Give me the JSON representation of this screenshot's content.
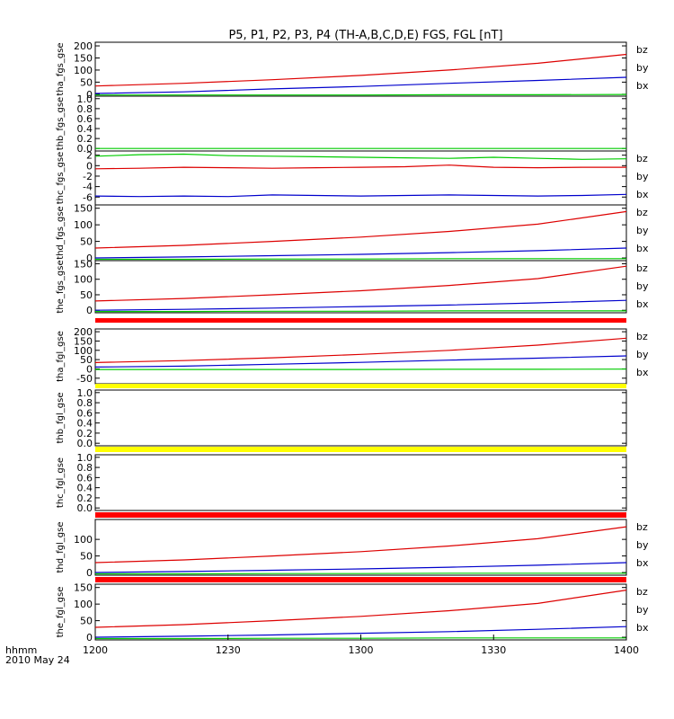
{
  "title": "P5, P1, P2, P3, P4 (TH-A,B,C,D,E) FGS, FGL [nT]",
  "time_axis": {
    "label_top": "hhmm",
    "label_bottom": "2010 May 24",
    "ticks": [
      "1200",
      "1230",
      "1300",
      "1330",
      "1400"
    ]
  },
  "colors": {
    "bx": "#0000cc",
    "by": "#00cc00",
    "bz": "#dd0000",
    "bar_red": "#ff0000",
    "bar_yellow": "#ffff00"
  },
  "chart_data": [
    {
      "type": "line",
      "name": "tha_fgs_gse",
      "ylabel": "tha_fgs_gse",
      "ylim": [
        -8,
        215
      ],
      "yticks": [
        "0",
        "50",
        "100",
        "150",
        "200"
      ],
      "ytick_values": [
        0,
        50,
        100,
        150,
        200
      ],
      "legend": [
        "bz",
        "by",
        "bx"
      ],
      "x": [
        0,
        20,
        40,
        60,
        80,
        100,
        120
      ],
      "series": [
        {
          "name": "bz",
          "color": "bz",
          "values": [
            34,
            45,
            60,
            78,
            100,
            128,
            165
          ]
        },
        {
          "name": "by",
          "color": "by",
          "values": [
            -3,
            -3,
            -3,
            -3,
            -2,
            -2,
            -1
          ]
        },
        {
          "name": "bx",
          "color": "bx",
          "values": [
            3,
            10,
            22,
            32,
            45,
            57,
            70
          ]
        }
      ]
    },
    {
      "type": "line",
      "name": "thb_fgs_gse",
      "ylabel": "thb_fgs_gse",
      "ylim": [
        -0.05,
        1.05
      ],
      "yticks": [
        "0.0",
        "0.2",
        "0.4",
        "0.6",
        "0.8",
        "1.0"
      ],
      "ytick_values": [
        0,
        0.2,
        0.4,
        0.6,
        0.8,
        1.0
      ],
      "legend": [],
      "x": [
        0,
        120
      ],
      "series": [
        {
          "name": "",
          "color": "by",
          "values": [
            0,
            0
          ]
        }
      ]
    },
    {
      "type": "line",
      "name": "thc_fgs_gse",
      "ylabel": "thc_fgs_gse",
      "ylim": [
        -7.5,
        2.8
      ],
      "yticks": [
        "-6",
        "-4",
        "-2",
        "0",
        "2"
      ],
      "ytick_values": [
        -6,
        -4,
        -2,
        0,
        2
      ],
      "legend": [
        "bz",
        "by",
        "bx"
      ],
      "x": [
        0,
        10,
        20,
        30,
        40,
        50,
        60,
        70,
        80,
        90,
        100,
        110,
        120
      ],
      "series": [
        {
          "name": "bz",
          "color": "bz",
          "values": [
            -0.6,
            -0.5,
            -0.3,
            -0.4,
            -0.5,
            -0.4,
            -0.3,
            -0.2,
            0.1,
            -0.3,
            -0.4,
            -0.3,
            -0.3
          ]
        },
        {
          "name": "by",
          "color": "by",
          "values": [
            1.8,
            2.1,
            2.2,
            1.9,
            1.8,
            1.7,
            1.6,
            1.5,
            1.4,
            1.6,
            1.4,
            1.2,
            1.3
          ]
        },
        {
          "name": "bx",
          "color": "bx",
          "values": [
            -5.8,
            -5.9,
            -5.8,
            -5.9,
            -5.6,
            -5.7,
            -5.8,
            -5.7,
            -5.6,
            -5.7,
            -5.8,
            -5.7,
            -5.5
          ]
        }
      ]
    },
    {
      "type": "line",
      "name": "thd_fgs_gse",
      "ylabel": "thd_fgs_gse",
      "ylim": [
        -8,
        160
      ],
      "yticks": [
        "0",
        "50",
        "100",
        "150"
      ],
      "ytick_values": [
        0,
        50,
        100,
        150
      ],
      "legend": [
        "bz",
        "by",
        "bx"
      ],
      "x": [
        0,
        20,
        40,
        60,
        80,
        100,
        120
      ],
      "series": [
        {
          "name": "bz",
          "color": "bz",
          "values": [
            30,
            38,
            50,
            63,
            80,
            102,
            140
          ]
        },
        {
          "name": "by",
          "color": "by",
          "values": [
            -4,
            -4,
            -3,
            -3,
            -2,
            -2,
            -2
          ]
        },
        {
          "name": "bx",
          "color": "bx",
          "values": [
            0,
            3,
            7,
            11,
            16,
            22,
            30
          ]
        }
      ]
    },
    {
      "type": "line",
      "name": "the_fgs_gse",
      "ylabel": "the_fgs_gse",
      "ylim": [
        -8,
        160
      ],
      "yticks": [
        "0",
        "50",
        "100",
        "150"
      ],
      "ytick_values": [
        0,
        50,
        100,
        150
      ],
      "legend": [
        "bz",
        "by",
        "bx"
      ],
      "x": [
        0,
        20,
        40,
        60,
        80,
        100,
        120
      ],
      "series": [
        {
          "name": "bz",
          "color": "bz",
          "values": [
            30,
            38,
            50,
            63,
            80,
            102,
            142
          ]
        },
        {
          "name": "by",
          "color": "by",
          "values": [
            -4,
            -4,
            -3,
            -3,
            -2,
            -2,
            -2
          ]
        },
        {
          "name": "bx",
          "color": "bx",
          "values": [
            0,
            3,
            7,
            12,
            17,
            24,
            32
          ]
        }
      ]
    },
    {
      "type": "line",
      "name": "tha_fgl_gse",
      "ylabel": "tha_fgl_gse",
      "ylim": [
        -80,
        215
      ],
      "yticks": [
        "-50",
        "0",
        "50",
        "100",
        "150",
        "200"
      ],
      "ytick_values": [
        -50,
        0,
        50,
        100,
        150,
        200
      ],
      "legend": [
        "bz",
        "by",
        "bx"
      ],
      "x": [
        0,
        20,
        40,
        60,
        80,
        100,
        120
      ],
      "series": [
        {
          "name": "bz",
          "color": "bz",
          "values": [
            34,
            45,
            60,
            78,
            100,
            128,
            165
          ]
        },
        {
          "name": "by",
          "color": "by",
          "values": [
            -3,
            -3,
            -3,
            -3,
            -2,
            -2,
            -1
          ]
        },
        {
          "name": "bx",
          "color": "bx",
          "values": [
            10,
            15,
            25,
            35,
            47,
            58,
            70
          ]
        }
      ]
    },
    {
      "type": "line",
      "name": "thb_fgl_gse",
      "ylabel": "thb_fgl_gse",
      "ylim": [
        -0.05,
        1.05
      ],
      "yticks": [
        "0.0",
        "0.2",
        "0.4",
        "0.6",
        "0.8",
        "1.0"
      ],
      "ytick_values": [
        0,
        0.2,
        0.4,
        0.6,
        0.8,
        1.0
      ],
      "legend": [],
      "x": [],
      "series": []
    },
    {
      "type": "line",
      "name": "thc_fgl_gse",
      "ylabel": "thc_fgl_gse",
      "ylim": [
        -0.05,
        1.05
      ],
      "yticks": [
        "0.0",
        "0.2",
        "0.4",
        "0.6",
        "0.8",
        "1.0"
      ],
      "ytick_values": [
        0,
        0.2,
        0.4,
        0.6,
        0.8,
        1.0
      ],
      "legend": [],
      "x": [],
      "series": []
    },
    {
      "type": "line",
      "name": "thd_fgl_gse",
      "ylabel": "thd_fgl_gse",
      "ylim": [
        -8,
        160
      ],
      "yticks": [
        "0",
        "50",
        "100"
      ],
      "ytick_values": [
        0,
        50,
        100
      ],
      "legend": [
        "bz",
        "by",
        "bx"
      ],
      "x": [
        0,
        20,
        40,
        60,
        80,
        100,
        120
      ],
      "series": [
        {
          "name": "bz",
          "color": "bz",
          "values": [
            30,
            38,
            50,
            63,
            80,
            102,
            138
          ]
        },
        {
          "name": "by",
          "color": "by",
          "values": [
            -4,
            -4,
            -3,
            -3,
            -2,
            -2,
            -2
          ]
        },
        {
          "name": "bx",
          "color": "bx",
          "values": [
            0,
            3,
            7,
            11,
            16,
            22,
            30
          ]
        }
      ]
    },
    {
      "type": "line",
      "name": "the_fgl_gse",
      "ylabel": "the_fgl_gse",
      "ylim": [
        -8,
        160
      ],
      "yticks": [
        "0",
        "50",
        "100",
        "150"
      ],
      "ytick_values": [
        0,
        50,
        100,
        150
      ],
      "legend": [
        "bz",
        "by",
        "bx"
      ],
      "x": [
        0,
        20,
        40,
        60,
        80,
        100,
        120
      ],
      "series": [
        {
          "name": "bz",
          "color": "bz",
          "values": [
            30,
            38,
            50,
            63,
            80,
            102,
            142
          ]
        },
        {
          "name": "by",
          "color": "by",
          "values": [
            -4,
            -4,
            -3,
            -3,
            -2,
            -2,
            -2
          ]
        },
        {
          "name": "bx",
          "color": "bx",
          "values": [
            0,
            3,
            7,
            12,
            17,
            24,
            32
          ]
        }
      ]
    }
  ],
  "bars": [
    {
      "after_panel": 4,
      "color": "bar_red"
    },
    {
      "after_panel": 5,
      "color": "bar_yellow"
    },
    {
      "after_panel": 6,
      "color": "bar_yellow"
    },
    {
      "after_panel": 7,
      "color": "bar_red"
    },
    {
      "after_panel": 8,
      "color": "bar_red"
    }
  ]
}
